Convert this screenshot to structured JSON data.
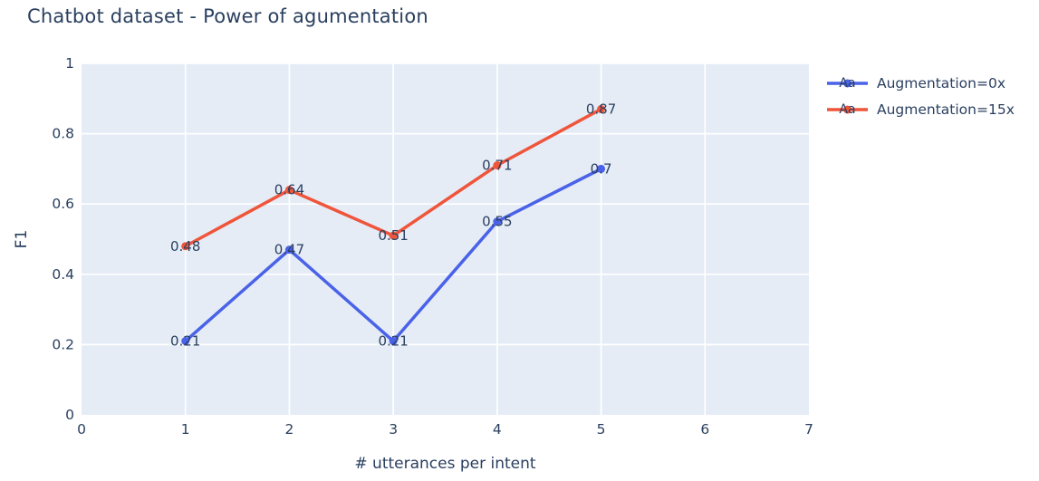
{
  "title": "Chatbot dataset - Power of agumentation",
  "colors": {
    "plot_background": "#e5ecf6",
    "grid": "#ffffff",
    "text": "#2a3f5f",
    "series_blue": "#4a62e8",
    "series_red": "#ef553b"
  },
  "legend": {
    "swatch_text": "Aa",
    "entries": [
      "Augmentation=0x",
      "Augmentation=15x"
    ]
  },
  "chart_data": {
    "type": "line",
    "title": "Chatbot dataset - Power of agumentation",
    "xlabel": "# utterances per intent",
    "ylabel": "F1",
    "xlim": [
      0,
      7
    ],
    "ylim": [
      0,
      1
    ],
    "xticks": [
      0,
      1,
      2,
      3,
      4,
      5,
      6,
      7
    ],
    "xtick_labels": [
      "0",
      "1",
      "2",
      "3",
      "4",
      "5",
      "6",
      "7"
    ],
    "yticks": [
      0,
      0.2,
      0.4,
      0.6,
      0.8,
      1
    ],
    "ytick_labels": [
      "0",
      "0.2",
      "0.4",
      "0.6",
      "0.8",
      "1"
    ],
    "grid": true,
    "legend_position": "right",
    "legend_swatch_text": "Aa",
    "plot_bg": "#e5ecf6",
    "grid_color": "#ffffff",
    "text_color": "#2a3f5f",
    "x": [
      1,
      2,
      3,
      4,
      5
    ],
    "series": [
      {
        "name": "Augmentation=0x",
        "color": "#4a62e8",
        "values": [
          0.21,
          0.47,
          0.21,
          0.55,
          0.7
        ],
        "labels": [
          "0.21",
          "0.47",
          "0.21",
          "0.55",
          "0.7"
        ]
      },
      {
        "name": "Augmentation=15x",
        "color": "#ef553b",
        "values": [
          0.48,
          0.64,
          0.51,
          0.71,
          0.87
        ],
        "labels": [
          "0.48",
          "0.64",
          "0.51",
          "0.71",
          "0.87"
        ]
      }
    ]
  }
}
